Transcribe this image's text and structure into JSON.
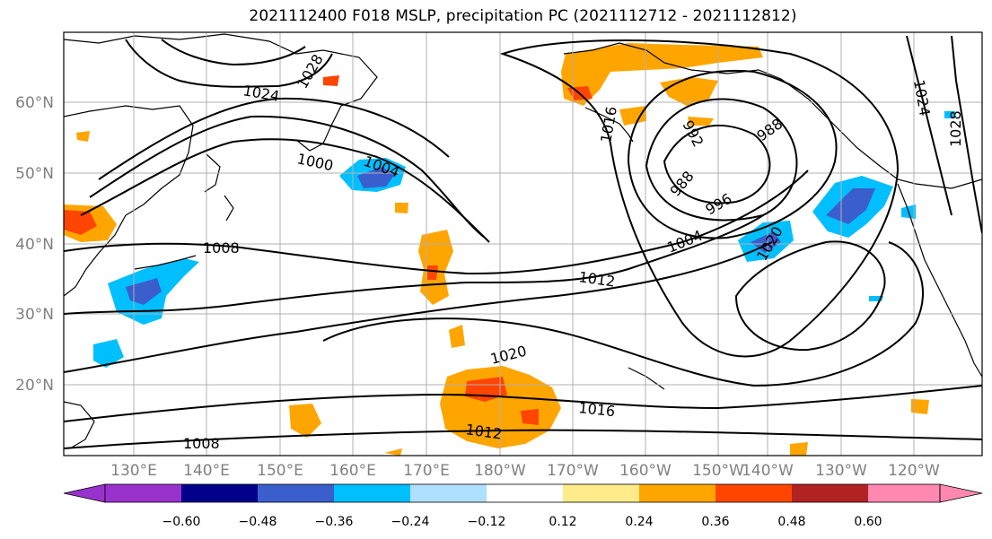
{
  "title": "2021112400 F018 MSLP, precipitation PC (2021112712 - 2021112812)",
  "map": {
    "lat_labels": [
      "60°N",
      "50°N",
      "40°N",
      "30°N",
      "20°N"
    ],
    "lon_labels": [
      "130°E",
      "140°E",
      "150°E",
      "160°E",
      "170°E",
      "180°W",
      "170°W",
      "160°W",
      "150°W",
      "140°W",
      "130°W",
      "120°W"
    ],
    "isobar_labels": [
      "1000",
      "1004",
      "1008",
      "1012",
      "1016",
      "1020",
      "1024",
      "1028",
      "1012",
      "1008",
      "988",
      "988",
      "992",
      "996",
      "1004",
      "1020",
      "1016",
      "1024",
      "1028"
    ],
    "colors": {
      "land_outline": "#000000",
      "grid": "#b0b0b0",
      "isobar": "#000000"
    }
  },
  "colorbar": {
    "tick_labels": [
      "−0.60",
      "−0.48",
      "−0.36",
      "−0.24",
      "−0.12",
      "0.12",
      "0.24",
      "0.36",
      "0.48",
      "0.60"
    ],
    "colors": [
      "#9932cc",
      "#00008b",
      "#3a5fcd",
      "#00bfff",
      "#b0e0ff",
      "#ffffff",
      "#ffeb8a",
      "#ffa500",
      "#ff4500",
      "#b22222",
      "#ff88b0"
    ]
  }
}
